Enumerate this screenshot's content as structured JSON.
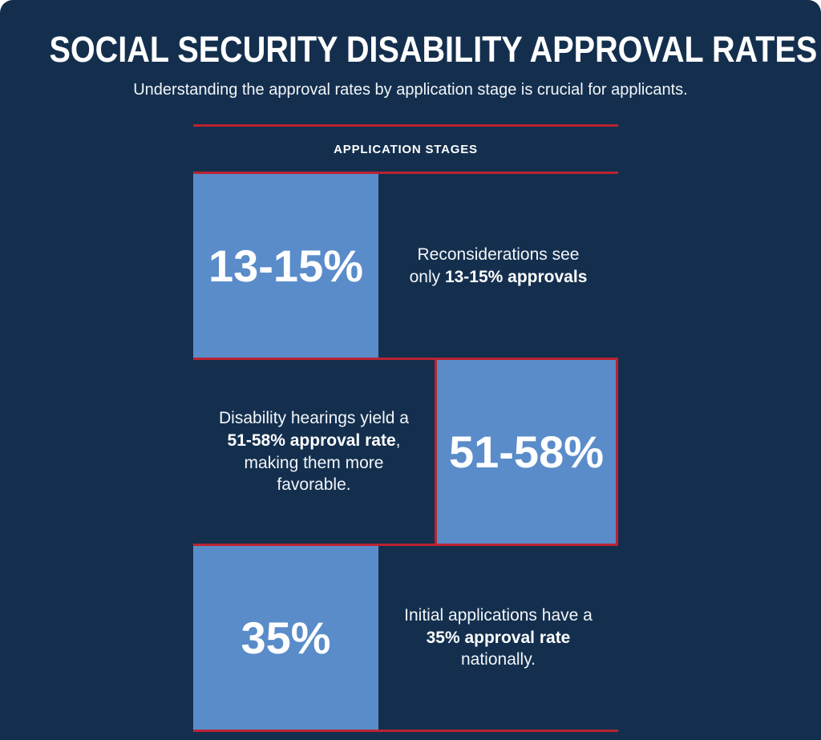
{
  "page": {
    "title": "SOCIAL SECURITY DISABILITY APPROVAL RATES",
    "subtitle": "Understanding the approval rates by application stage is crucial for applicants.",
    "section_label": "APPLICATION STAGES"
  },
  "colors": {
    "background_navy": "#142F4E",
    "box_blue": "#5A8CCA",
    "divider_red": "#BA2332",
    "text_white": "#FFFFFF"
  },
  "stages": [
    {
      "name": "Reconsiderations",
      "value": "13-15%",
      "box_side": "left",
      "desc_pre": "Reconsiderations see only ",
      "desc_bold": "13-15% approvals",
      "desc_post": ""
    },
    {
      "name": "Disability hearings",
      "value": "51-58%",
      "box_side": "right",
      "desc_pre": "Disability hearings yield a ",
      "desc_bold": "51-58% approval rate",
      "desc_post": ", making them more favorable."
    },
    {
      "name": "Initial applications",
      "value": "35%",
      "box_side": "left",
      "desc_pre": "Initial applications have a ",
      "desc_bold": "35% approval rate",
      "desc_post": " nationally."
    }
  ],
  "chart_data": {
    "type": "table",
    "title": "SOCIAL SECURITY DISABILITY APPROVAL RATES",
    "categories": [
      "Reconsiderations",
      "Disability hearings",
      "Initial applications"
    ],
    "value_labels": [
      "13-15%",
      "51-58%",
      "35%"
    ],
    "values_min": [
      13,
      51,
      35
    ],
    "values_max": [
      15,
      58,
      35
    ],
    "unit": "percent approval rate"
  }
}
